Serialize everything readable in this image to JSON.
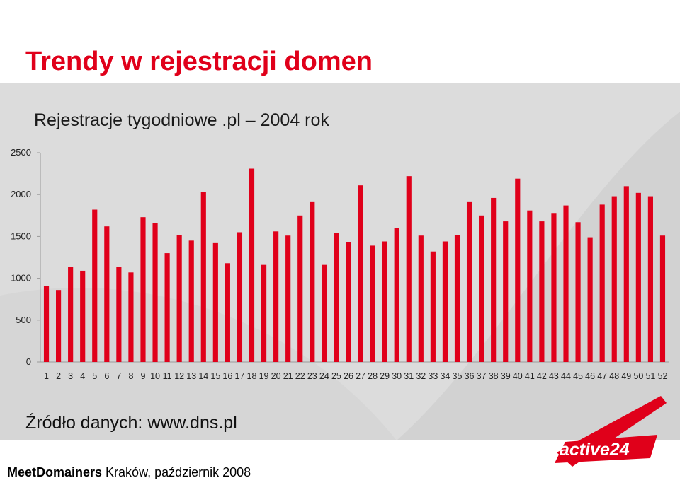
{
  "slide": {
    "title": "Trendy w rejestracji domen",
    "source": "Źródło danych: www.dns.pl",
    "footer_brand": "MeetDomainers",
    "footer_text": " Kraków, październik 2008",
    "logo_text": "active24"
  },
  "colors": {
    "accent": "#e0001a",
    "band": "#dcdcdc"
  },
  "chart_data": {
    "type": "bar",
    "title": "Rejestracje tygodniowe .pl – 2004 rok",
    "xlabel": "",
    "ylabel": "",
    "ylim": [
      0,
      2500
    ],
    "yticks": [
      0,
      500,
      1000,
      1500,
      2000,
      2500
    ],
    "grid": false,
    "legend": "none",
    "categories": [
      "1",
      "2",
      "3",
      "4",
      "5",
      "6",
      "7",
      "8",
      "9",
      "10",
      "11",
      "12",
      "13",
      "14",
      "15",
      "16",
      "17",
      "18",
      "19",
      "20",
      "21",
      "22",
      "23",
      "24",
      "25",
      "26",
      "27",
      "28",
      "29",
      "30",
      "31",
      "32",
      "33",
      "34",
      "35",
      "36",
      "37",
      "38",
      "39",
      "40",
      "41",
      "42",
      "43",
      "44",
      "45",
      "46",
      "47",
      "48",
      "49",
      "50",
      "51",
      "52"
    ],
    "values": [
      910,
      860,
      1140,
      1090,
      1820,
      1620,
      1140,
      1070,
      1730,
      1660,
      1300,
      1520,
      1450,
      2030,
      1420,
      1180,
      1550,
      2310,
      1160,
      1560,
      1510,
      1750,
      1910,
      1160,
      1540,
      1430,
      2110,
      1390,
      1440,
      1600,
      2220,
      1510,
      1320,
      1440,
      1520,
      1910,
      1750,
      1960,
      1680,
      2190,
      1810,
      1680,
      1780,
      1870,
      1670,
      1490,
      1880,
      1980,
      2100,
      2020,
      1980,
      1510
    ]
  }
}
